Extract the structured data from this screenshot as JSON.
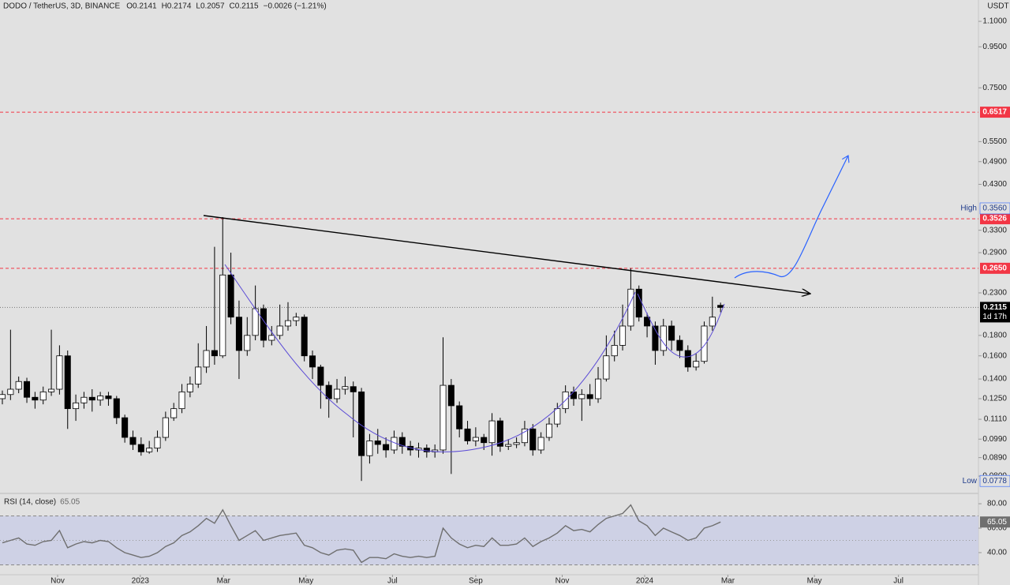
{
  "header": {
    "symbol": "DODO / TetherUS, 3D, BINANCE",
    "ohlc": [
      "O0.2141",
      "H0.2174",
      "L0.2057",
      "C0.2115",
      "−0.0026 (−1.21%)"
    ],
    "currency": "USDT"
  },
  "chart_data": [
    {
      "type": "candlestick",
      "ohlc": [
        [
          0.125,
          0.131,
          0.121,
          0.128
        ],
        [
          0.128,
          0.186,
          0.124,
          0.132
        ],
        [
          0.132,
          0.142,
          0.129,
          0.138
        ],
        [
          0.138,
          0.141,
          0.122,
          0.126
        ],
        [
          0.126,
          0.13,
          0.118,
          0.124
        ],
        [
          0.124,
          0.134,
          0.121,
          0.13
        ],
        [
          0.13,
          0.186,
          0.127,
          0.132
        ],
        [
          0.132,
          0.17,
          0.128,
          0.16
        ],
        [
          0.16,
          0.165,
          0.105,
          0.118
        ],
        [
          0.118,
          0.128,
          0.11,
          0.122
        ],
        [
          0.122,
          0.13,
          0.118,
          0.126
        ],
        [
          0.126,
          0.132,
          0.116,
          0.124
        ],
        [
          0.124,
          0.13,
          0.12,
          0.127
        ],
        [
          0.127,
          0.13,
          0.12,
          0.125
        ],
        [
          0.125,
          0.127,
          0.108,
          0.112
        ],
        [
          0.112,
          0.114,
          0.097,
          0.1
        ],
        [
          0.1,
          0.104,
          0.093,
          0.096
        ],
        [
          0.096,
          0.1,
          0.09,
          0.092
        ],
        [
          0.092,
          0.098,
          0.091,
          0.094
        ],
        [
          0.094,
          0.104,
          0.092,
          0.1
        ],
        [
          0.1,
          0.116,
          0.098,
          0.112
        ],
        [
          0.112,
          0.122,
          0.11,
          0.118
        ],
        [
          0.118,
          0.136,
          0.115,
          0.13
        ],
        [
          0.13,
          0.142,
          0.126,
          0.136
        ],
        [
          0.136,
          0.172,
          0.133,
          0.15
        ],
        [
          0.15,
          0.19,
          0.145,
          0.165
        ],
        [
          0.165,
          0.3,
          0.152,
          0.16
        ],
        [
          0.16,
          0.356,
          0.158,
          0.255
        ],
        [
          0.255,
          0.29,
          0.192,
          0.2
        ],
        [
          0.2,
          0.22,
          0.14,
          0.165
        ],
        [
          0.165,
          0.2,
          0.16,
          0.18
        ],
        [
          0.18,
          0.24,
          0.175,
          0.21
        ],
        [
          0.21,
          0.215,
          0.168,
          0.175
        ],
        [
          0.175,
          0.19,
          0.17,
          0.18
        ],
        [
          0.18,
          0.215,
          0.176,
          0.19
        ],
        [
          0.19,
          0.218,
          0.185,
          0.196
        ],
        [
          0.196,
          0.205,
          0.19,
          0.2
        ],
        [
          0.2,
          0.203,
          0.155,
          0.16
        ],
        [
          0.16,
          0.165,
          0.14,
          0.15
        ],
        [
          0.15,
          0.152,
          0.118,
          0.135
        ],
        [
          0.135,
          0.138,
          0.112,
          0.125
        ],
        [
          0.125,
          0.14,
          0.122,
          0.132
        ],
        [
          0.132,
          0.142,
          0.128,
          0.134
        ],
        [
          0.134,
          0.138,
          0.1,
          0.13
        ],
        [
          0.13,
          0.133,
          0.0778,
          0.09
        ],
        [
          0.09,
          0.102,
          0.086,
          0.098
        ],
        [
          0.098,
          0.105,
          0.091,
          0.096
        ],
        [
          0.096,
          0.1,
          0.089,
          0.093
        ],
        [
          0.093,
          0.104,
          0.091,
          0.1
        ],
        [
          0.1,
          0.103,
          0.091,
          0.095
        ],
        [
          0.095,
          0.098,
          0.09,
          0.093
        ],
        [
          0.093,
          0.097,
          0.089,
          0.094
        ],
        [
          0.094,
          0.096,
          0.089,
          0.092
        ],
        [
          0.092,
          0.096,
          0.089,
          0.093
        ],
        [
          0.093,
          0.178,
          0.091,
          0.135
        ],
        [
          0.135,
          0.14,
          0.081,
          0.12
        ],
        [
          0.12,
          0.123,
          0.1,
          0.105
        ],
        [
          0.105,
          0.11,
          0.096,
          0.098
        ],
        [
          0.098,
          0.106,
          0.095,
          0.1
        ],
        [
          0.1,
          0.102,
          0.093,
          0.097
        ],
        [
          0.097,
          0.115,
          0.09,
          0.11
        ],
        [
          0.11,
          0.112,
          0.092,
          0.095
        ],
        [
          0.095,
          0.099,
          0.093,
          0.096
        ],
        [
          0.096,
          0.1,
          0.094,
          0.097
        ],
        [
          0.097,
          0.11,
          0.095,
          0.105
        ],
        [
          0.105,
          0.108,
          0.09,
          0.093
        ],
        [
          0.093,
          0.103,
          0.091,
          0.1
        ],
        [
          0.1,
          0.112,
          0.098,
          0.108
        ],
        [
          0.108,
          0.122,
          0.106,
          0.118
        ],
        [
          0.118,
          0.135,
          0.115,
          0.13
        ],
        [
          0.13,
          0.134,
          0.12,
          0.125
        ],
        [
          0.125,
          0.132,
          0.11,
          0.128
        ],
        [
          0.128,
          0.136,
          0.12,
          0.125
        ],
        [
          0.125,
          0.15,
          0.122,
          0.14
        ],
        [
          0.14,
          0.18,
          0.138,
          0.16
        ],
        [
          0.16,
          0.185,
          0.155,
          0.17
        ],
        [
          0.17,
          0.215,
          0.165,
          0.19
        ],
        [
          0.19,
          0.265,
          0.185,
          0.235
        ],
        [
          0.235,
          0.24,
          0.195,
          0.2
        ],
        [
          0.2,
          0.205,
          0.178,
          0.19
        ],
        [
          0.19,
          0.195,
          0.152,
          0.165
        ],
        [
          0.165,
          0.198,
          0.16,
          0.19
        ],
        [
          0.19,
          0.196,
          0.165,
          0.175
        ],
        [
          0.175,
          0.18,
          0.158,
          0.165
        ],
        [
          0.165,
          0.17,
          0.146,
          0.15
        ],
        [
          0.15,
          0.162,
          0.147,
          0.155
        ],
        [
          0.155,
          0.195,
          0.153,
          0.19
        ],
        [
          0.19,
          0.225,
          0.185,
          0.2
        ],
        [
          0.2141,
          0.2174,
          0.2057,
          0.2115
        ]
      ],
      "xlim": [
        -0.29,
        119.6
      ],
      "xticks": [
        {
          "value": 6.77,
          "label": "Nov"
        },
        {
          "value": 16.9,
          "label": "2023"
        },
        {
          "value": 27.1,
          "label": "Mar"
        },
        {
          "value": 37.2,
          "label": "May"
        },
        {
          "value": 47.8,
          "label": "Jul"
        },
        {
          "value": 58.0,
          "label": "Sep"
        },
        {
          "value": 68.6,
          "label": "Nov"
        },
        {
          "value": 78.7,
          "label": "2024"
        },
        {
          "value": 88.9,
          "label": "Mar"
        },
        {
          "value": 99.5,
          "label": "May"
        },
        {
          "value": 109.8,
          "label": "Jul"
        }
      ],
      "ylim": [
        0.0724,
        1.244
      ],
      "log_scale": true,
      "yticks": [
        {
          "value": 1.1,
          "label": "1.1000"
        },
        {
          "value": 0.95,
          "label": "0.9500"
        },
        {
          "value": 0.75,
          "label": "0.7500"
        },
        {
          "value": 0.55,
          "label": "0.5500"
        },
        {
          "value": 0.49,
          "label": "0.4900"
        },
        {
          "value": 0.43,
          "label": "0.4300"
        },
        {
          "value": 0.33,
          "label": "0.3300"
        },
        {
          "value": 0.29,
          "label": "0.2900"
        },
        {
          "value": 0.23,
          "label": "0.2300"
        },
        {
          "value": 0.18,
          "label": "0.1800"
        },
        {
          "value": 0.16,
          "label": "0.1600"
        },
        {
          "value": 0.14,
          "label": "0.1400"
        },
        {
          "value": 0.125,
          "label": "0.1250"
        },
        {
          "value": 0.111,
          "label": "0.1110"
        },
        {
          "value": 0.099,
          "label": "0.0990"
        },
        {
          "value": 0.089,
          "label": "0.0890"
        },
        {
          "value": 0.08,
          "label": "0.0800"
        }
      ],
      "up_color": "#ffffff",
      "down_color": "#000000",
      "levels": [
        {
          "value": 0.6517,
          "label": "0.6517"
        },
        {
          "value": 0.3526,
          "label": "0.3526"
        },
        {
          "value": 0.265,
          "label": "0.2650"
        }
      ],
      "level_color": "#f23645",
      "high": {
        "name": "High",
        "value": 0.356,
        "label": "0.3560"
      },
      "low": {
        "name": "Low",
        "value": 0.0778,
        "label": "0.0778"
      },
      "last": {
        "value": 0.2115,
        "label": "0.2115",
        "countdown": "1d 17h"
      }
    },
    {
      "type": "line",
      "title": "RSI (14, close)",
      "color": "#6f6f6f",
      "values": [
        48,
        50,
        52,
        47,
        46,
        49,
        50,
        58,
        44,
        47,
        49,
        48,
        50,
        49,
        44,
        40,
        38,
        36,
        37,
        40,
        45,
        48,
        54,
        57,
        62,
        68,
        64,
        75,
        62,
        50,
        54,
        58,
        50,
        52,
        54,
        55,
        56,
        46,
        44,
        40,
        38,
        42,
        43,
        42,
        32,
        36,
        36,
        35,
        39,
        37,
        36,
        37,
        36,
        37,
        60,
        52,
        47,
        44,
        46,
        45,
        52,
        46,
        46,
        47,
        52,
        45,
        49,
        52,
        56,
        62,
        58,
        59,
        57,
        63,
        68,
        70,
        72,
        79,
        66,
        62,
        54,
        60,
        57,
        54,
        50,
        52,
        60,
        62,
        65.05
      ],
      "ylim": [
        21.9,
        86.5
      ],
      "yticks": [
        {
          "value": 80,
          "label": "80.00"
        },
        {
          "value": 60,
          "label": "60.00"
        },
        {
          "value": 40,
          "label": "40.00"
        }
      ],
      "band": [
        30,
        70
      ],
      "midline": 50
    }
  ]
}
